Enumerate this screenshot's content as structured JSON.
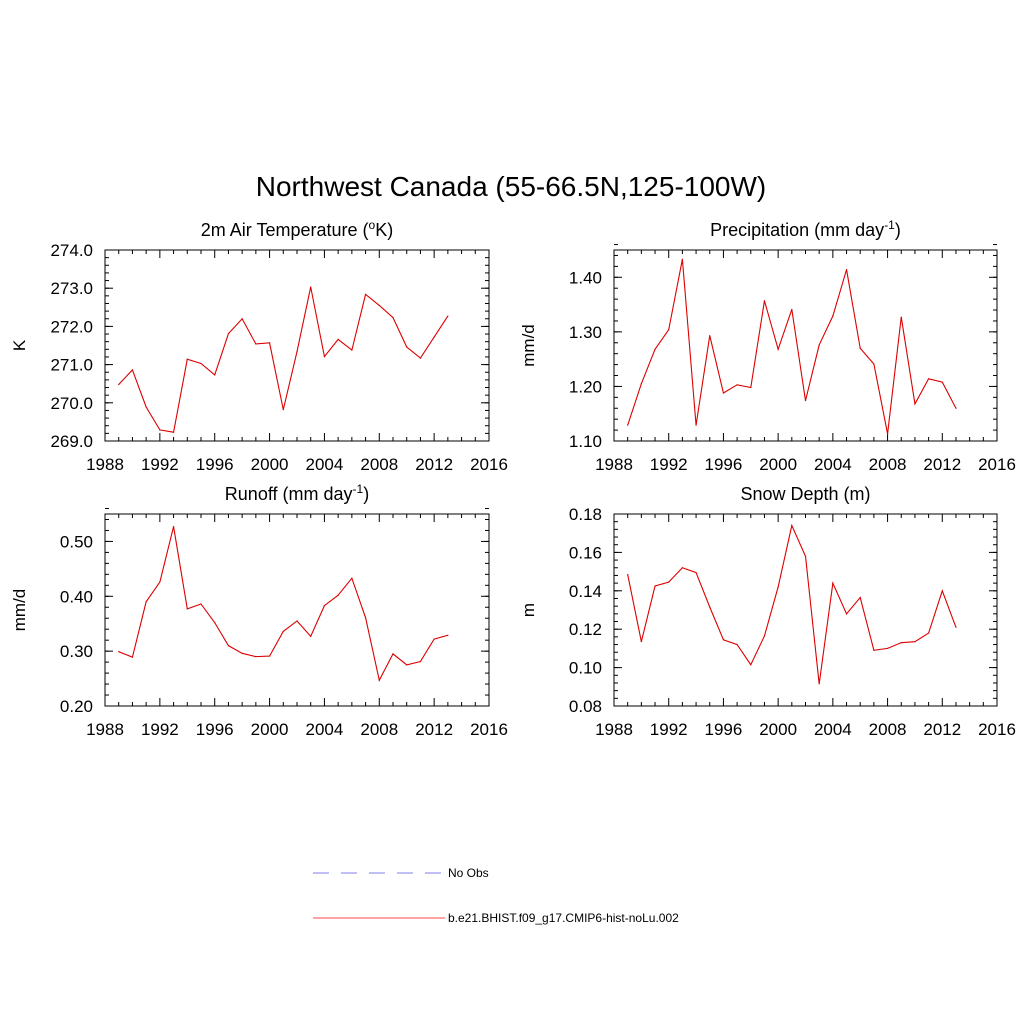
{
  "figure": {
    "title": "Northwest Canada (55-66.5N,125-100W)"
  },
  "chart_data": [
    {
      "type": "line",
      "title": "2m Air Temperature (",
      "title_super": "o",
      "title_after": "K)",
      "xlabel": "",
      "ylabel": "K",
      "xlim": [
        1988,
        2016
      ],
      "ylim": [
        269.0,
        274.0
      ],
      "xticks": [
        1988,
        1992,
        1996,
        2000,
        2004,
        2008,
        2012,
        2016
      ],
      "yticks": [
        "269.0",
        "270.0",
        "271.0",
        "272.0",
        "273.0",
        "274.0"
      ],
      "x": [
        1989,
        1990,
        1991,
        1992,
        1993,
        1994,
        1995,
        1996,
        1997,
        1998,
        1999,
        2000,
        2001,
        2002,
        2003,
        2004,
        2005,
        2006,
        2007,
        2008,
        2009,
        2010,
        2011,
        2012,
        2013
      ],
      "series": [
        {
          "name": "b.e21.BHIST.f09_g17.CMIP6-hist-noLu.002",
          "values": [
            270.48,
            270.86,
            269.89,
            269.29,
            269.23,
            271.14,
            271.03,
            270.73,
            271.81,
            272.2,
            271.54,
            271.57,
            269.82,
            271.34,
            273.03,
            271.21,
            271.66,
            271.38,
            272.84,
            272.55,
            272.23,
            271.46,
            271.17,
            271.72,
            272.27
          ]
        }
      ]
    },
    {
      "type": "line",
      "title": "Precipitation (mm day",
      "title_super": "-1",
      "title_after": ")",
      "xlabel": "",
      "ylabel": "mm/d",
      "xlim": [
        1988,
        2016
      ],
      "ylim": [
        1.1,
        1.45
      ],
      "xticks": [
        1988,
        1992,
        1996,
        2000,
        2004,
        2008,
        2012,
        2016
      ],
      "yticks": [
        "1.10",
        "1.20",
        "1.30",
        "1.40"
      ],
      "x": [
        1989,
        1990,
        1991,
        1992,
        1993,
        1994,
        1995,
        1996,
        1997,
        1998,
        1999,
        2000,
        2001,
        2002,
        2003,
        2004,
        2005,
        2006,
        2007,
        2008,
        2009,
        2010,
        2011,
        2012,
        2013
      ],
      "series": [
        {
          "name": "b.e21.BHIST.f09_g17.CMIP6-hist-noLu.002",
          "values": [
            1.129,
            1.205,
            1.268,
            1.304,
            1.433,
            1.129,
            1.293,
            1.188,
            1.203,
            1.198,
            1.357,
            1.268,
            1.341,
            1.174,
            1.276,
            1.329,
            1.414,
            1.27,
            1.241,
            1.113,
            1.327,
            1.168,
            1.214,
            1.208,
            1.16
          ]
        }
      ]
    },
    {
      "type": "line",
      "title": "Runoff (mm day",
      "title_super": "-1",
      "title_after": ")",
      "xlabel": "",
      "ylabel": "mm/d",
      "xlim": [
        1988,
        2016
      ],
      "ylim": [
        0.2,
        0.55
      ],
      "xticks": [
        1988,
        1992,
        1996,
        2000,
        2004,
        2008,
        2012,
        2016
      ],
      "yticks": [
        "0.20",
        "0.30",
        "0.40",
        "0.50"
      ],
      "x": [
        1989,
        1990,
        1991,
        1992,
        1993,
        1994,
        1995,
        1996,
        1997,
        1998,
        1999,
        2000,
        2001,
        2002,
        2003,
        2004,
        2005,
        2006,
        2007,
        2008,
        2009,
        2010,
        2011,
        2012,
        2013
      ],
      "series": [
        {
          "name": "b.e21.BHIST.f09_g17.CMIP6-hist-noLu.002",
          "values": [
            0.299,
            0.289,
            0.39,
            0.426,
            0.527,
            0.377,
            0.386,
            0.352,
            0.31,
            0.296,
            0.29,
            0.291,
            0.336,
            0.355,
            0.327,
            0.383,
            0.402,
            0.433,
            0.361,
            0.247,
            0.295,
            0.275,
            0.281,
            0.322,
            0.329
          ]
        }
      ]
    },
    {
      "type": "line",
      "title": "Snow Depth (m)",
      "title_super": "",
      "title_after": "",
      "xlabel": "",
      "ylabel": "m",
      "xlim": [
        1988,
        2016
      ],
      "ylim": [
        0.08,
        0.18
      ],
      "xticks": [
        1988,
        1992,
        1996,
        2000,
        2004,
        2008,
        2012,
        2016
      ],
      "yticks": [
        "0.08",
        "0.10",
        "0.12",
        "0.14",
        "0.16",
        "0.18"
      ],
      "x": [
        1989,
        1990,
        1991,
        1992,
        1993,
        1994,
        1995,
        1996,
        1997,
        1998,
        1999,
        2000,
        2001,
        2002,
        2003,
        2004,
        2005,
        2006,
        2007,
        2008,
        2009,
        2010,
        2011,
        2012,
        2013
      ],
      "series": [
        {
          "name": "b.e21.BHIST.f09_g17.CMIP6-hist-noLu.002",
          "values": [
            0.1485,
            0.1135,
            0.1425,
            0.1445,
            0.152,
            0.1495,
            0.1315,
            0.1145,
            0.112,
            0.1015,
            0.1165,
            0.142,
            0.174,
            0.158,
            0.0915,
            0.144,
            0.128,
            0.1365,
            0.109,
            0.11,
            0.113,
            0.1135,
            0.118,
            0.14,
            0.121
          ]
        }
      ]
    }
  ],
  "legend": {
    "obs_label": "No Obs",
    "model_label": "b.e21.BHIST.f09_g17.CMIP6-hist-noLu.002",
    "obs_color": "#9999ee",
    "model_color": "#ff4444"
  },
  "colors": {
    "line": "#dd0000",
    "axis": "#000000"
  }
}
